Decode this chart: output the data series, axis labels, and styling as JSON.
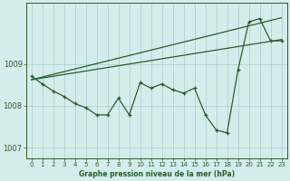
{
  "title": "Graphe pression niveau de la mer (hPa)",
  "bg_color": "#d4edec",
  "plot_bg_color": "#d4edec",
  "grid_color": "#a8cccc",
  "line_color": "#2a5c2a",
  "ylim": [
    1006.75,
    1010.45
  ],
  "yticks": [
    1007,
    1008,
    1009
  ],
  "xlim": [
    -0.5,
    23.5
  ],
  "xticks": [
    0,
    1,
    2,
    3,
    4,
    5,
    6,
    7,
    8,
    9,
    10,
    11,
    12,
    13,
    14,
    15,
    16,
    17,
    18,
    19,
    20,
    21,
    22,
    23
  ],
  "pressure_main": [
    1008.7,
    1008.52,
    1008.35,
    1008.22,
    1008.05,
    1007.95,
    1007.78,
    1007.78,
    1008.18,
    1007.78,
    1008.55,
    1008.42,
    1008.52,
    1008.38,
    1008.3,
    1008.42,
    1007.78,
    1007.42,
    1007.35,
    1008.85,
    1010.0,
    1010.08,
    1009.55,
    1009.55
  ],
  "trend_line1_x": [
    0,
    23
  ],
  "trend_line1_y": [
    1008.62,
    1009.58
  ],
  "trend_line2_x": [
    0,
    23
  ],
  "trend_line2_y": [
    1008.62,
    1010.1
  ],
  "xlabel_size": 5.5,
  "tick_size": 5.0,
  "ytick_size": 6.0
}
